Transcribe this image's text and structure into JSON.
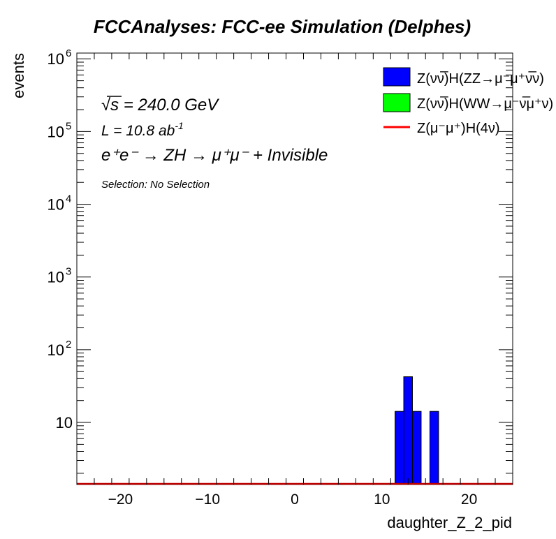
{
  "chart_data": {
    "type": "bar",
    "title": "FCCAnalyses: FCC-ee Simulation (Delphes)",
    "xlabel": "daughter_Z_2_pid",
    "ylabel": "events",
    "xlim": [
      -25,
      25
    ],
    "ylim": [
      1.4,
      1200000
    ],
    "yscale": "log",
    "grid": false,
    "legend_position": "top-right",
    "x_ticks": [
      -20,
      -10,
      0,
      10,
      20
    ],
    "x_tick_labels": [
      "−20",
      "−10",
      "0",
      "10",
      "20"
    ],
    "y_ticks": [
      10,
      100,
      1000,
      10000,
      100000,
      1000000
    ],
    "y_tick_labels": [
      {
        "base": "10",
        "exp": ""
      },
      {
        "base": "10",
        "exp": "2"
      },
      {
        "base": "10",
        "exp": "3"
      },
      {
        "base": "10",
        "exp": "4"
      },
      {
        "base": "10",
        "exp": "5"
      },
      {
        "base": "10",
        "exp": "6"
      }
    ],
    "series": [
      {
        "name": "Z(νν̅)H(ZZ→μ⁻μ⁺ν̅ν)",
        "color": "#0000ff",
        "style": "filled",
        "bins": [
          {
            "x0": 11.5,
            "x1": 12.5,
            "value": 14.2
          },
          {
            "x0": 12.5,
            "x1": 13.5,
            "value": 42.5
          },
          {
            "x0": 13.5,
            "x1": 14.5,
            "value": 14.2
          },
          {
            "x0": 15.5,
            "x1": 16.5,
            "value": 14.2
          }
        ]
      },
      {
        "name": "Z(νν̅)H(WW→μ⁻ν̅μ⁺ν)",
        "color": "#00ff00",
        "style": "filled",
        "bins": []
      },
      {
        "name": "Z(μ⁻μ⁺)H(4ν)",
        "color": "#ff0000",
        "style": "line",
        "bins": []
      }
    ]
  },
  "annotations": {
    "sqrt_s": "√s = 240.0 GeV",
    "lumi_prefix": "L = 10.8 ab",
    "lumi_exp": "-1",
    "process": "e⁺e⁻ → ZH → μ⁺μ⁻ + Invisible",
    "selection": "Selection: No Selection"
  }
}
